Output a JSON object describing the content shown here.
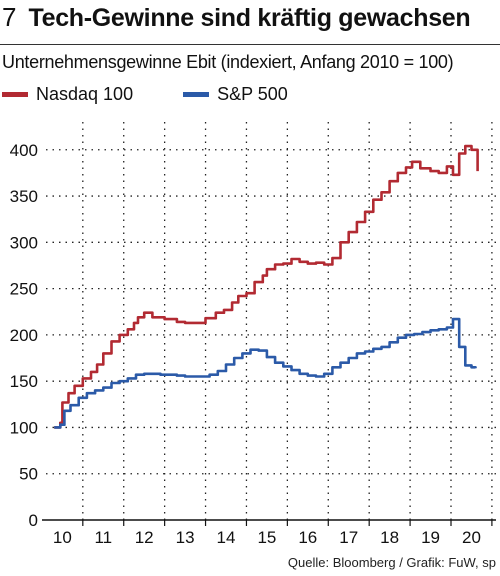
{
  "header": {
    "number": "7",
    "title": "Tech-Gewinne sind kräftig gewachsen",
    "subtitle": "Unternehmensgewinne Ebit (indexiert, Anfang 2010 = 100)"
  },
  "footer": {
    "source": "Quelle: Bloomberg / Grafik: FuW, sp"
  },
  "colors": {
    "nasdaq": "#b22a32",
    "sp500": "#2b5aa8",
    "grid": "#222222"
  },
  "chart_data": {
    "type": "line",
    "title": "Tech-Gewinne sind kräftig gewachsen",
    "subtitle": "Unternehmensgewinne Ebit (indexiert, Anfang 2010 = 100)",
    "xlabel": "",
    "ylabel": "",
    "xlim": [
      2009.6,
      2020.6
    ],
    "ylim": [
      0,
      430
    ],
    "yticks": [
      0,
      50,
      100,
      150,
      200,
      250,
      300,
      350,
      400
    ],
    "xticks": [
      2010,
      2011,
      2012,
      2013,
      2014,
      2015,
      2016,
      2017,
      2018,
      2019,
      2020
    ],
    "xtick_labels": [
      "10",
      "11",
      "12",
      "13",
      "14",
      "15",
      "16",
      "17",
      "18",
      "19",
      "20"
    ],
    "legend_position": "top-left",
    "grid": true,
    "series": [
      {
        "name": "Nasdaq 100",
        "color": "#b22a32",
        "x": [
          2009.8,
          2009.95,
          2010.0,
          2010.15,
          2010.3,
          2010.5,
          2010.7,
          2010.85,
          2011.0,
          2011.2,
          2011.4,
          2011.6,
          2011.75,
          2011.85,
          2012.0,
          2012.2,
          2012.5,
          2012.8,
          2013.0,
          2013.25,
          2013.5,
          2013.75,
          2013.95,
          2014.15,
          2014.3,
          2014.5,
          2014.7,
          2014.9,
          2015.0,
          2015.2,
          2015.4,
          2015.6,
          2015.8,
          2016.0,
          2016.2,
          2016.4,
          2016.6,
          2016.8,
          2017.0,
          2017.2,
          2017.4,
          2017.6,
          2017.8,
          2018.0,
          2018.2,
          2018.4,
          2018.55,
          2018.75,
          2019.0,
          2019.2,
          2019.4,
          2019.55,
          2019.7,
          2019.85,
          2020.0,
          2020.15
        ],
        "values": [
          100,
          105,
          127,
          137,
          145,
          153,
          160,
          168,
          180,
          193,
          200,
          206,
          213,
          219,
          224,
          219,
          217,
          214,
          213,
          213,
          218,
          224,
          227,
          235,
          242,
          245,
          257,
          264,
          271,
          276,
          277,
          282,
          279,
          277,
          278,
          276,
          283,
          300,
          311,
          322,
          333,
          346,
          354,
          366,
          375,
          381,
          387,
          380,
          377,
          375,
          382,
          373,
          396,
          404,
          400,
          377
        ]
      },
      {
        "name": "S&P 500",
        "color": "#2b5aa8",
        "x": [
          2009.8,
          2009.95,
          2010.05,
          2010.2,
          2010.4,
          2010.6,
          2010.8,
          2011.0,
          2011.2,
          2011.4,
          2011.6,
          2011.8,
          2012.0,
          2012.2,
          2012.4,
          2012.6,
          2012.8,
          2013.0,
          2013.2,
          2013.4,
          2013.6,
          2013.8,
          2014.0,
          2014.2,
          2014.4,
          2014.6,
          2014.8,
          2015.0,
          2015.2,
          2015.4,
          2015.6,
          2015.8,
          2016.0,
          2016.2,
          2016.4,
          2016.6,
          2016.8,
          2017.0,
          2017.2,
          2017.4,
          2017.6,
          2017.8,
          2018.0,
          2018.2,
          2018.4,
          2018.6,
          2018.8,
          2019.0,
          2019.2,
          2019.4,
          2019.55,
          2019.7,
          2019.85,
          2020.0,
          2020.1
        ],
        "values": [
          100,
          103,
          118,
          124,
          132,
          137,
          140,
          143,
          148,
          150,
          153,
          157,
          158,
          158,
          157,
          157,
          156,
          155,
          155,
          155,
          157,
          161,
          168,
          175,
          180,
          184,
          183,
          176,
          170,
          166,
          162,
          158,
          156,
          155,
          158,
          165,
          170,
          175,
          180,
          182,
          185,
          187,
          192,
          197,
          200,
          201,
          203,
          205,
          206,
          208,
          217,
          187,
          167,
          165,
          164
        ]
      }
    ]
  }
}
